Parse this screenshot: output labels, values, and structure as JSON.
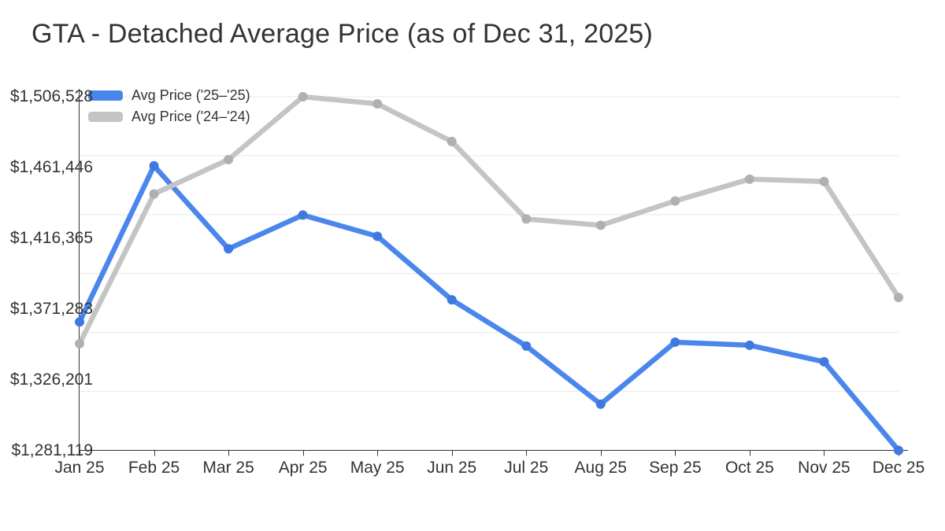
{
  "title": "GTA - Detached Average Price (as of Dec 31, 2025)",
  "chart_data": {
    "type": "line",
    "title": "GTA - Detached Average Price (as of Dec 31, 2025)",
    "categories": [
      "Jan 25",
      "Feb 25",
      "Mar 25",
      "Apr 25",
      "May 25",
      "Jun 25",
      "Jul 25",
      "Aug 25",
      "Sep 25",
      "Oct 25",
      "Nov 25",
      "Dec 25"
    ],
    "series": [
      {
        "name": "Avg Price ('25–'25)",
        "color": "#4a86ec",
        "marker_color": "#3f79e0",
        "values": [
          1363000,
          1462500,
          1409600,
          1431100,
          1417600,
          1377100,
          1347600,
          1310600,
          1350100,
          1348100,
          1337600,
          1281119
        ]
      },
      {
        "name": "Avg Price ('24–'24)",
        "color": "#c4c4c4",
        "marker_color": "#b0b0b0",
        "values": [
          1349100,
          1444600,
          1466500,
          1506528,
          1502000,
          1478000,
          1428600,
          1424600,
          1440100,
          1454000,
          1452500,
          1378600
        ]
      }
    ],
    "y_ticks": [
      "$1,506,528",
      "$1,461,446",
      "$1,416,365",
      "$1,371,283",
      "$1,326,201",
      "$1,281,119"
    ],
    "ylim": [
      1281119,
      1506528
    ],
    "xlabel": "",
    "ylabel": "",
    "legend_position": "top-left",
    "grid": "horizontal"
  },
  "colors": {
    "axis_text": "#333333",
    "axis_line": "#333333",
    "gridline": "#e8e8e8",
    "background": "#ffffff"
  }
}
